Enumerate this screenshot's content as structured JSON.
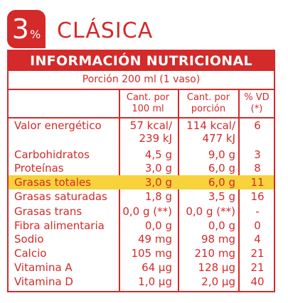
{
  "badge": {
    "number": "3",
    "percent": "%"
  },
  "product_name": "CLÁSICA",
  "table": {
    "title": "INFORMACIÓN NUTRICIONAL",
    "portion": "Porción 200 ml (1 vaso)",
    "columns": {
      "per100": [
        "Cant. por",
        "100 ml"
      ],
      "perPortion": [
        "Cant. por",
        "porción"
      ],
      "vd": [
        "% VD",
        "(*)"
      ]
    },
    "rows": [
      {
        "name": "Valor energético",
        "per100": "57 kcal/",
        "per100b": "239 kJ",
        "portion": "114 kcal/",
        "portionb": "477 kJ",
        "vd": "6",
        "highlight": false
      },
      {
        "name": "Carbohidratos",
        "per100": "4,5 g",
        "portion": "9,0 g",
        "vd": "3",
        "highlight": false
      },
      {
        "name": "Proteínas",
        "per100": "3,0 g",
        "portion": "6,0 g",
        "vd": "8",
        "highlight": false
      },
      {
        "name": "Grasas totales",
        "per100": "3,0 g",
        "portion": "6,0 g",
        "vd": "11",
        "highlight": true
      },
      {
        "name": "Grasas saturadas",
        "per100": "1,8 g",
        "portion": "3,5 g",
        "vd": "16",
        "highlight": false
      },
      {
        "name": "Grasas trans",
        "per100": "0,0 g (**)",
        "portion": "0,0 g (**)",
        "vd": "-",
        "highlight": false
      },
      {
        "name": "Fibra alimentaria",
        "per100": "0,0 g",
        "portion": "0,0 g",
        "vd": "0",
        "highlight": false
      },
      {
        "name": "Sodio",
        "per100": "49 mg",
        "portion": "98 mg",
        "vd": "4",
        "highlight": false
      },
      {
        "name": "Calcio",
        "per100": "105 mg",
        "portion": "210 mg",
        "vd": "21",
        "highlight": false
      },
      {
        "name": "Vitamina A",
        "per100": "64 µg",
        "portion": "128 µg",
        "vd": "21",
        "highlight": false
      },
      {
        "name": "Vitamina D",
        "per100": "1,0 µg",
        "portion": "2,0 µg",
        "vd": "40",
        "highlight": false
      }
    ]
  },
  "colors": {
    "accent": "#d42a2a",
    "highlight": "#f7d23a"
  }
}
